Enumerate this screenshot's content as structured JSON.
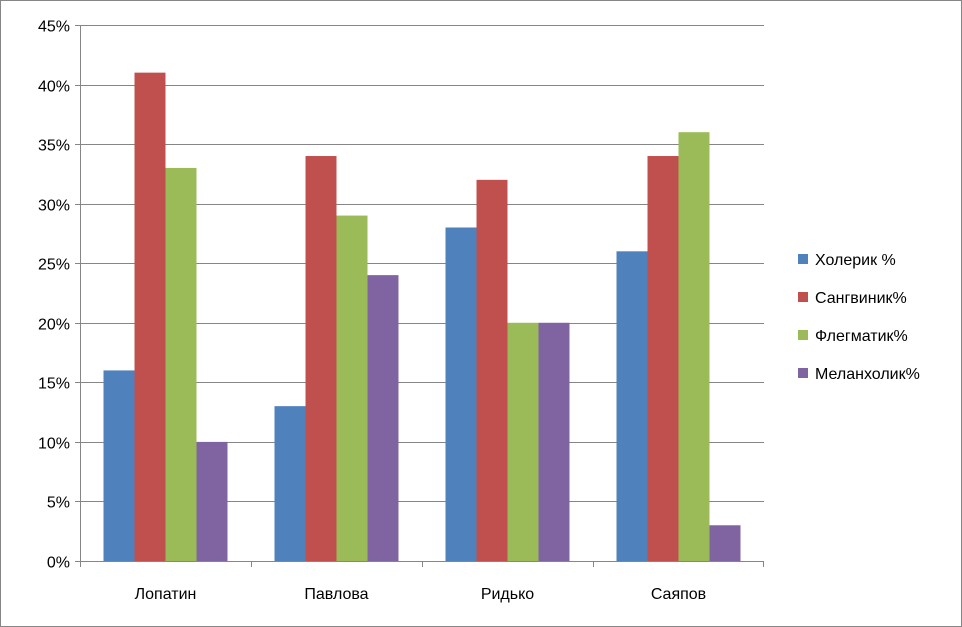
{
  "chart_data": {
    "type": "bar",
    "categories": [
      "Лопатин",
      "Павлова",
      "Ридько",
      "Саяпов"
    ],
    "series": [
      {
        "name": "Холерик %",
        "values": [
          16,
          13,
          28,
          26
        ],
        "color": "#4F81BD"
      },
      {
        "name": "Сангвиник%",
        "values": [
          41,
          34,
          32,
          34
        ],
        "color": "#C0504D"
      },
      {
        "name": "Флегматик%",
        "values": [
          33,
          29,
          20,
          36
        ],
        "color": "#9BBB59"
      },
      {
        "name": "Меланхолик%",
        "values": [
          10,
          24,
          20,
          3
        ],
        "color": "#8064A2"
      }
    ],
    "ylim": [
      0,
      45
    ],
    "yticks": [
      0,
      5,
      10,
      15,
      20,
      25,
      30,
      35,
      40,
      45
    ],
    "ytick_suffix": "%",
    "grid": true,
    "legend": "right",
    "title": "",
    "xlabel": "",
    "ylabel": ""
  },
  "colors": {
    "gridline": "#868686",
    "axis": "#868686",
    "frame": "#868686"
  }
}
